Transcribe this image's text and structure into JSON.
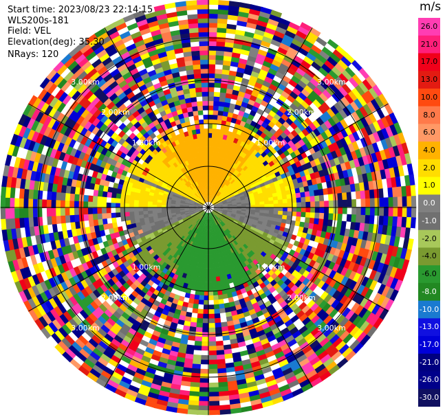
{
  "header": {
    "start_time": "Start time: 2023/08/23 22:14:15",
    "instrument": "WLS200s-181",
    "field": "Field: VEL",
    "elevation": "Elevation(deg): 35.30",
    "nrays": "NRays: 120"
  },
  "chart_data": {
    "type": "heatmap",
    "subtype": "polar-ppi",
    "field": "VEL",
    "units": "m/s",
    "nrays": 120,
    "ring_labels": [
      "1.00km",
      "2.00km",
      "3.00km"
    ],
    "colorbar": {
      "unit": "m/s",
      "tick_labels": [
        "26.0",
        "21.0",
        "17.0",
        "13.0",
        "10.0",
        "8.0",
        "6.0",
        "4.0",
        "2.0",
        "1.0",
        "0.0",
        "-1.0",
        "-2.0",
        "-4.0",
        "-6.0",
        "-8.0",
        "-10.0",
        "-13.0",
        "-17.0",
        "-21.0",
        "-26.0",
        "-30.0"
      ],
      "colors": [
        "#ff3db3",
        "#ff1f7a",
        "#f0001a",
        "#e31b12",
        "#ff4a10",
        "#ff7a4a",
        "#ff9966",
        "#ffb200",
        "#ffdd00",
        "#ffff00",
        "#808080",
        "#707070",
        "#a8c85a",
        "#7a9a30",
        "#2a9a30",
        "#228822",
        "#1a7ad0",
        "#1010e0",
        "#0000d8",
        "#000080",
        "#00008a",
        "#101060"
      ]
    }
  }
}
